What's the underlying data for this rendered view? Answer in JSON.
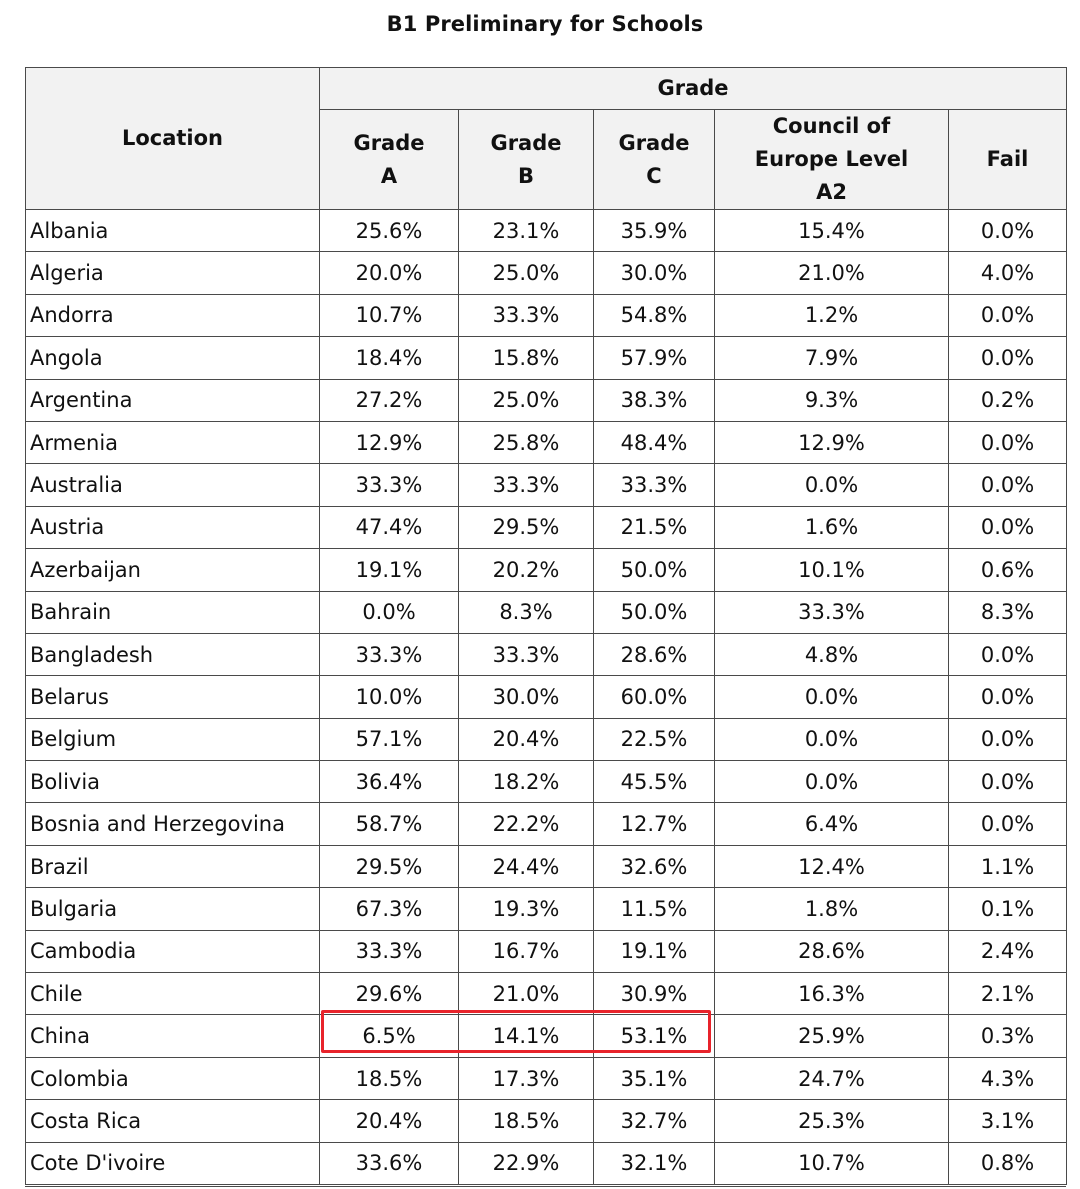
{
  "title": "B1 Preliminary for Schools",
  "header": {
    "location": "Location",
    "group": "Grade",
    "columns": [
      {
        "line1": "Grade",
        "line2": "A",
        "line3": ""
      },
      {
        "line1": "Grade",
        "line2": "B",
        "line3": ""
      },
      {
        "line1": "Grade",
        "line2": "C",
        "line3": ""
      },
      {
        "line1": "Council of",
        "line2": "Europe Level",
        "line3": "A2"
      },
      {
        "line1": "Fail",
        "line2": "",
        "line3": ""
      }
    ]
  },
  "rows": [
    {
      "location": "Albania",
      "a": "25.6%",
      "b": "23.1%",
      "c": "35.9%",
      "a2": "15.4%",
      "fail": "0.0%"
    },
    {
      "location": "Algeria",
      "a": "20.0%",
      "b": "25.0%",
      "c": "30.0%",
      "a2": "21.0%",
      "fail": "4.0%"
    },
    {
      "location": "Andorra",
      "a": "10.7%",
      "b": "33.3%",
      "c": "54.8%",
      "a2": "1.2%",
      "fail": "0.0%"
    },
    {
      "location": "Angola",
      "a": "18.4%",
      "b": "15.8%",
      "c": "57.9%",
      "a2": "7.9%",
      "fail": "0.0%"
    },
    {
      "location": "Argentina",
      "a": "27.2%",
      "b": "25.0%",
      "c": "38.3%",
      "a2": "9.3%",
      "fail": "0.2%"
    },
    {
      "location": "Armenia",
      "a": "12.9%",
      "b": "25.8%",
      "c": "48.4%",
      "a2": "12.9%",
      "fail": "0.0%"
    },
    {
      "location": "Australia",
      "a": "33.3%",
      "b": "33.3%",
      "c": "33.3%",
      "a2": "0.0%",
      "fail": "0.0%"
    },
    {
      "location": "Austria",
      "a": "47.4%",
      "b": "29.5%",
      "c": "21.5%",
      "a2": "1.6%",
      "fail": "0.0%"
    },
    {
      "location": "Azerbaijan",
      "a": "19.1%",
      "b": "20.2%",
      "c": "50.0%",
      "a2": "10.1%",
      "fail": "0.6%"
    },
    {
      "location": "Bahrain",
      "a": "0.0%",
      "b": "8.3%",
      "c": "50.0%",
      "a2": "33.3%",
      "fail": "8.3%"
    },
    {
      "location": "Bangladesh",
      "a": "33.3%",
      "b": "33.3%",
      "c": "28.6%",
      "a2": "4.8%",
      "fail": "0.0%"
    },
    {
      "location": "Belarus",
      "a": "10.0%",
      "b": "30.0%",
      "c": "60.0%",
      "a2": "0.0%",
      "fail": "0.0%"
    },
    {
      "location": "Belgium",
      "a": "57.1%",
      "b": "20.4%",
      "c": "22.5%",
      "a2": "0.0%",
      "fail": "0.0%"
    },
    {
      "location": "Bolivia",
      "a": "36.4%",
      "b": "18.2%",
      "c": "45.5%",
      "a2": "0.0%",
      "fail": "0.0%"
    },
    {
      "location": "Bosnia and Herzegovina",
      "a": "58.7%",
      "b": "22.2%",
      "c": "12.7%",
      "a2": "6.4%",
      "fail": "0.0%"
    },
    {
      "location": "Brazil",
      "a": "29.5%",
      "b": "24.4%",
      "c": "32.6%",
      "a2": "12.4%",
      "fail": "1.1%"
    },
    {
      "location": "Bulgaria",
      "a": "67.3%",
      "b": "19.3%",
      "c": "11.5%",
      "a2": "1.8%",
      "fail": "0.1%"
    },
    {
      "location": "Cambodia",
      "a": "33.3%",
      "b": "16.7%",
      "c": "19.1%",
      "a2": "28.6%",
      "fail": "2.4%"
    },
    {
      "location": "Chile",
      "a": "29.6%",
      "b": "21.0%",
      "c": "30.9%",
      "a2": "16.3%",
      "fail": "2.1%"
    },
    {
      "location": "China",
      "a": "6.5%",
      "b": "14.1%",
      "c": "53.1%",
      "a2": "25.9%",
      "fail": "0.3%"
    },
    {
      "location": "Colombia",
      "a": "18.5%",
      "b": "17.3%",
      "c": "35.1%",
      "a2": "24.7%",
      "fail": "4.3%"
    },
    {
      "location": "Costa Rica",
      "a": "20.4%",
      "b": "18.5%",
      "c": "32.7%",
      "a2": "25.3%",
      "fail": "3.1%"
    },
    {
      "location": "Cote D'ivoire",
      "a": "33.6%",
      "b": "22.9%",
      "c": "32.1%",
      "a2": "10.7%",
      "fail": "0.8%"
    }
  ],
  "highlight": {
    "row_location": "China",
    "columns": [
      "Grade A",
      "Grade B",
      "Grade C"
    ],
    "color": "#e8232b"
  },
  "colors": {
    "header_bg": "#f2f2f2",
    "border": "#4a4a4a",
    "highlight": "#e8232b"
  }
}
